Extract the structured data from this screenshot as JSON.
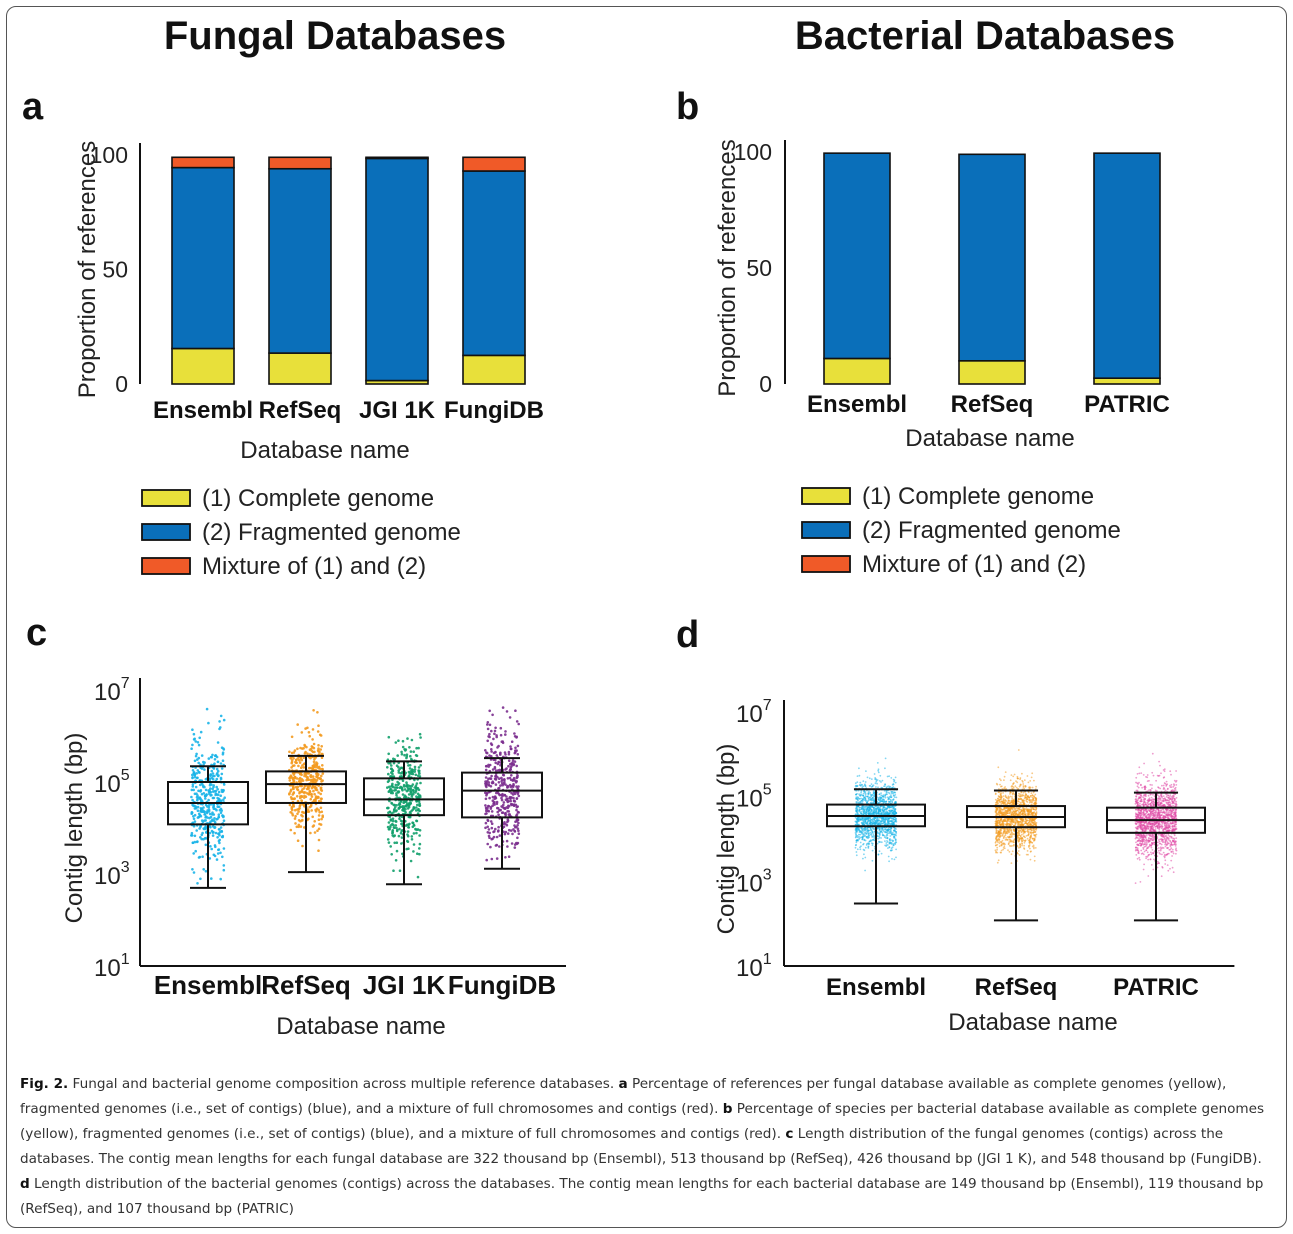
{
  "titles": {
    "left": "Fungal Databases",
    "right": "Bacterial Databases"
  },
  "panel_letters": {
    "a": "a",
    "b": "b",
    "c": "c",
    "d": "d"
  },
  "legend": {
    "items": [
      {
        "label": "(1) Complete genome",
        "color": "#e8e03a"
      },
      {
        "label": "(2) Fragmented genome",
        "color": "#0a6fba"
      },
      {
        "label": "Mixture of (1) and (2)",
        "color": "#f05a28"
      }
    ]
  },
  "caption": {
    "fig": "Fig. 2.",
    "intro": " Fungal and bacterial genome composition across multiple reference databases. ",
    "a_label": "a",
    "a_text": " Percentage of references per fungal database available as complete genomes (yellow), fragmented genomes (i.e., set of contigs) (blue), and a mixture of full chromosomes and contigs (red). ",
    "b_label": "b",
    "b_text": " Percentage of species per bacterial database available as complete genomes (yellow), fragmented genomes (i.e., set of contigs) (blue), and a mixture of full chromosomes and contigs (red). ",
    "c_label": "c",
    "c_text": " Length distribution of the fungal genomes (contigs) across the databases. The contig mean lengths for each fungal database are 322 thousand bp (Ensembl), 513 thousand bp (RefSeq), 426 thousand bp (JGI 1 K), and 548 thousand bp (FungiDB). ",
    "d_label": "d",
    "d_text": " Length distribution of the bacterial genomes (contigs) across the databases. The contig mean lengths for each bacterial database are 149 thousand bp (Ensembl), 119 thousand bp (RefSeq), and 107 thousand bp (PATRIC)"
  },
  "chart_data": [
    {
      "id": "a",
      "type": "bar",
      "stacked": true,
      "categories": [
        "Ensembl",
        "RefSeq",
        "JGI 1K",
        "FungiDB"
      ],
      "series": [
        {
          "name": "(1) Complete genome",
          "values": [
            15.5,
            13.5,
            1.5,
            12.5
          ],
          "color": "#e8e03a"
        },
        {
          "name": "(2) Fragmented genome",
          "values": [
            79,
            80.5,
            97,
            80.5
          ],
          "color": "#0a6fba"
        },
        {
          "name": "Mixture of (1) and (2)",
          "values": [
            4.5,
            5,
            0.5,
            6
          ],
          "color": "#f05a28"
        }
      ],
      "ylabel": "Proportion of references",
      "xlabel": "Database name",
      "ylim": [
        0,
        100
      ],
      "yticks": [
        "0",
        "50",
        "100"
      ],
      "ytick_values": [
        0,
        50,
        100
      ]
    },
    {
      "id": "b",
      "type": "bar",
      "stacked": true,
      "categories": [
        "Ensembl",
        "RefSeq",
        "PATRIC"
      ],
      "series": [
        {
          "name": "(1) Complete genome",
          "values": [
            11,
            10,
            2.5
          ],
          "color": "#e8e03a"
        },
        {
          "name": "(2) Fragmented genome",
          "values": [
            88.5,
            89,
            97
          ],
          "color": "#0a6fba"
        },
        {
          "name": "Mixture of (1) and (2)",
          "values": [
            0,
            0,
            0
          ],
          "color": "#f05a28"
        }
      ],
      "ylabel": "Proportion of references",
      "xlabel": "Database name",
      "ylim": [
        0,
        100
      ],
      "yticks": [
        "0",
        "50",
        "100"
      ],
      "ytick_values": [
        0,
        50,
        100
      ]
    },
    {
      "id": "c",
      "type": "box",
      "log_scale": true,
      "categories": [
        "Ensembl",
        "RefSeq",
        "JGI 1K",
        "FungiDB"
      ],
      "boxes": [
        {
          "whisker_low": 500,
          "q1": 12000,
          "median": 35000,
          "q3": 100000,
          "whisker_high": 220000,
          "color": "#19b4e8",
          "scatter_low": 600,
          "scatter_high": 4500000
        },
        {
          "whisker_low": 1100,
          "q1": 35000,
          "median": 90000,
          "q3": 170000,
          "whisker_high": 370000,
          "color": "#f39a1f",
          "scatter_low": 1500,
          "scatter_high": 3800000
        },
        {
          "whisker_low": 600,
          "q1": 19000,
          "median": 42000,
          "q3": 120000,
          "whisker_high": 280000,
          "color": "#12a06b",
          "scatter_low": 800,
          "scatter_high": 5500000
        },
        {
          "whisker_low": 1300,
          "q1": 17000,
          "median": 65000,
          "q3": 160000,
          "whisker_high": 330000,
          "color": "#7b2d8e",
          "scatter_low": 2000,
          "scatter_high": 4500000
        }
      ],
      "ylabel": "Contig length (bp)",
      "xlabel": "Database name",
      "ylim": [
        10,
        10000000
      ],
      "ytick_values": [
        10,
        1000,
        100000,
        10000000
      ],
      "ytick_mantissa": "10",
      "ytick_exponents": [
        "1",
        "3",
        "5",
        "7"
      ]
    },
    {
      "id": "d",
      "type": "box",
      "log_scale": true,
      "categories": [
        "Ensembl",
        "RefSeq",
        "PATRIC"
      ],
      "boxes": [
        {
          "whisker_low": 300,
          "q1": 20000,
          "median": 35000,
          "q3": 65000,
          "whisker_high": 150000,
          "color": "#19b4e8",
          "scatter_low": 500,
          "scatter_high": 2500000
        },
        {
          "whisker_low": 120,
          "q1": 19000,
          "median": 33000,
          "q3": 60000,
          "whisker_high": 140000,
          "color": "#f39a1f",
          "scatter_low": 2500,
          "scatter_high": 5000000
        },
        {
          "whisker_low": 120,
          "q1": 14000,
          "median": 28000,
          "q3": 55000,
          "whisker_high": 125000,
          "color": "#e04ba6",
          "scatter_low": 300,
          "scatter_high": 3500000
        }
      ],
      "ylabel": "Contig length (bp)",
      "xlabel": "Database name",
      "ylim": [
        10,
        10000000
      ],
      "ytick_values": [
        10,
        1000,
        100000,
        10000000
      ],
      "ytick_mantissa": "10",
      "ytick_exponents": [
        "1",
        "3",
        "5",
        "7"
      ]
    }
  ]
}
